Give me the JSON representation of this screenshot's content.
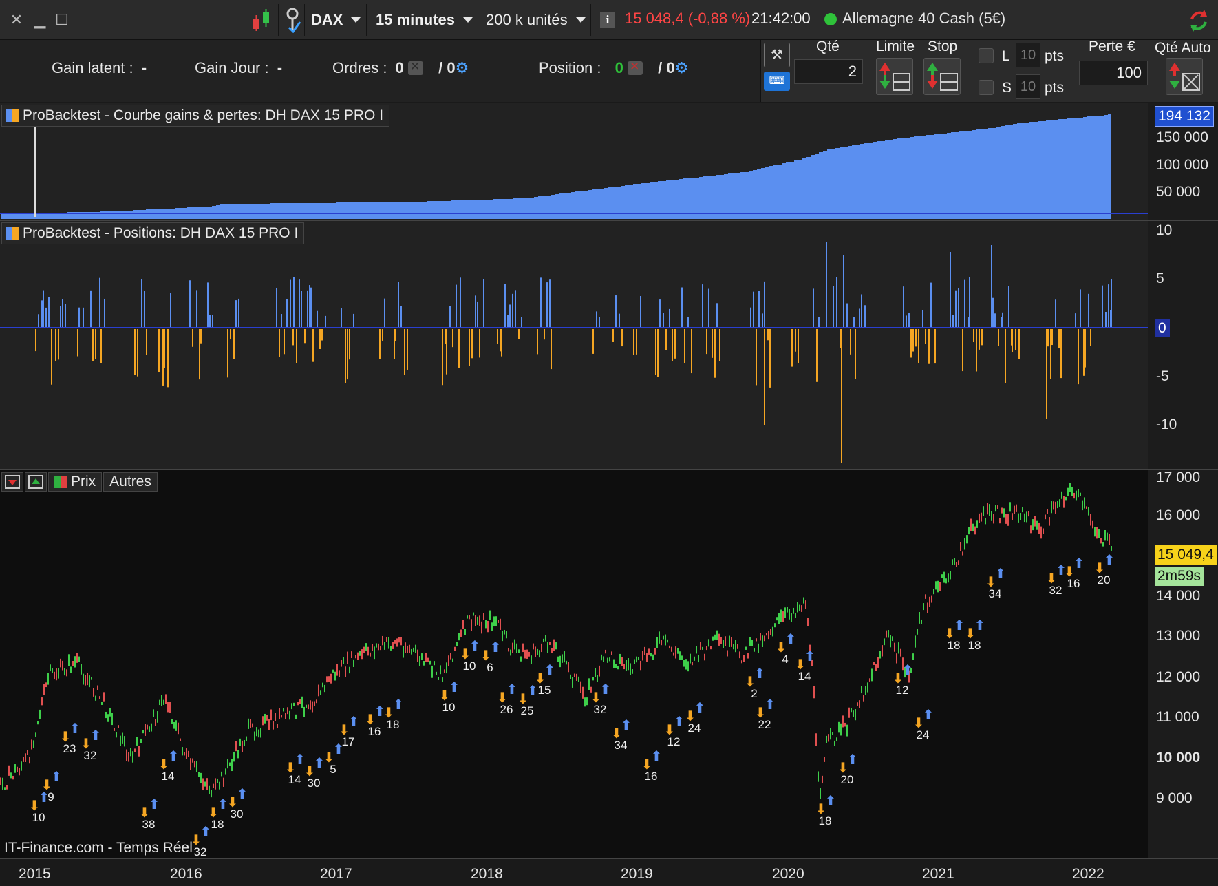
{
  "toolbar": {
    "symbol": "DAX",
    "timeframe": "15 minutes",
    "units": "200 k unités",
    "quote_change": "15 048,4 (-0,88 %)",
    "time": "21:42:00",
    "instrument": "Allemagne 40 Cash (5€)",
    "info_icon": "info-icon",
    "colors": {
      "negative": "#ff4545",
      "market_open": "#2fc23a"
    }
  },
  "status": {
    "gain_latent_label": "Gain latent :",
    "gain_latent_value": "-",
    "gain_jour_label": "Gain Jour :",
    "gain_jour_value": "-",
    "ordres_label": "Ordres :",
    "ordres_count": "0",
    "ordres_sep": "/ 0",
    "position_label": "Position :",
    "position_count": "0",
    "position_sep": "/ 0"
  },
  "order_panel": {
    "qty_label": "Qté",
    "qty_value": "2",
    "limit_label": "Limite",
    "stop_label": "Stop",
    "l_label": "L",
    "s_label": "S",
    "l_pts": "10",
    "s_pts": "10",
    "pts_label": "pts",
    "loss_label": "Perte €",
    "loss_value": "100",
    "auto_qty_label": "Qté Auto"
  },
  "equity_panel": {
    "title": "ProBacktest - Courbe gains & pertes: DH DAX 15 PRO I",
    "last_value": "194 132",
    "ticks": [
      "150 000",
      "100 000",
      "50 000"
    ],
    "color": "#5b8ff0"
  },
  "positions_panel": {
    "title": "ProBacktest - Positions: DH DAX 15 PRO I",
    "ticks": [
      "10",
      "5",
      "-5",
      "-10"
    ],
    "zero_label": "0",
    "long_color": "#5b8ff0",
    "short_color": "#f5a623"
  },
  "price_panel": {
    "tabs": {
      "prix": "Prix",
      "autres": "Autres"
    },
    "ticks": [
      "17 000",
      "16 000",
      "14 000",
      "13 000",
      "12 000",
      "11 000",
      "10 000",
      "9 000"
    ],
    "bold_tick": "10 000",
    "last_price": "15 049,4",
    "countdown": "2m59s",
    "watermark": "IT-Finance.com - Temps Réel",
    "signals": [
      "10",
      "9",
      "23",
      "32",
      "38",
      "14",
      "32",
      "18",
      "30",
      "14",
      "30",
      "5",
      "17",
      "16",
      "18",
      "10",
      "10",
      "6",
      "26",
      "25",
      "15",
      "32",
      "34",
      "16",
      "12",
      "24",
      "2",
      "22",
      "4",
      "14",
      "18",
      "20",
      "12",
      "24",
      "18",
      "18",
      "34",
      "32",
      "16",
      "20"
    ]
  },
  "x_axis": {
    "years": [
      "2015",
      "2016",
      "2017",
      "2018",
      "2019",
      "2020",
      "2021",
      "2022"
    ]
  }
}
